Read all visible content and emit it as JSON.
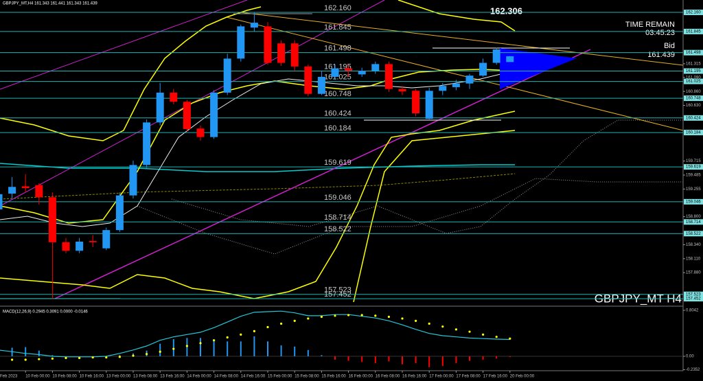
{
  "chart_data": [
    {
      "type": "candlestick",
      "title": "GBPJPY_MT,H4  161.343 161.441 161.343 161.439",
      "symbol_label": "GBPJPY_MT H4",
      "time_remain_label": "TIME REMAIN",
      "time_remain": "03:45:23",
      "bid_label": "Bid",
      "bid": 161.439,
      "high_label": 162.306,
      "categories": [
        "Feb 2023",
        null,
        "10 Feb 00:00",
        null,
        "10 Feb 08:00",
        null,
        "10 Feb 16:00",
        null,
        "13 Feb 00:00",
        null,
        "13 Feb 08:00",
        null,
        "13 Feb 16:00",
        null,
        "14 Feb 00:00",
        null,
        "14 Feb 08:00",
        null,
        "14 Feb 16:00",
        null,
        "15 Feb 00:00",
        null,
        "15 Feb 08:00",
        null,
        "15 Feb 16:00",
        null,
        "16 Feb 00:00",
        null,
        "16 Feb 08:00",
        null,
        "16 Feb 16:00",
        null,
        "17 Feb 00:00",
        null,
        "17 Feb 08:00",
        null,
        "17 Feb 16:00",
        null,
        "20 Feb 00:00"
      ],
      "open": [
        158.92,
        159.18,
        159.3,
        159.32,
        159.12,
        158.38,
        158.24,
        158.4,
        158.28,
        158.58,
        159.15,
        159.65,
        160.35,
        160.84,
        160.69,
        160.25,
        160.11,
        160.84,
        161.4,
        161.91,
        161.93,
        161.65,
        161.65,
        161.27,
        160.82,
        161.1,
        161.24,
        161.14,
        161.2,
        161.31,
        160.9,
        160.87,
        160.41,
        160.87,
        160.93,
        160.99,
        161.12,
        161.33,
        161.343
      ],
      "high": [
        159.3,
        159.45,
        159.5,
        159.35,
        159.2,
        158.45,
        158.45,
        158.5,
        158.62,
        159.2,
        159.72,
        160.4,
        161.0,
        160.9,
        160.72,
        160.3,
        160.88,
        161.48,
        161.96,
        162.16,
        162.0,
        161.7,
        161.7,
        161.3,
        161.2,
        161.3,
        161.3,
        161.25,
        161.35,
        161.35,
        160.95,
        160.9,
        160.92,
        161.0,
        161.05,
        161.15,
        161.4,
        161.58,
        161.441
      ],
      "low": [
        158.8,
        159.1,
        159.2,
        159.0,
        157.45,
        158.2,
        158.2,
        158.3,
        158.25,
        158.55,
        159.1,
        159.6,
        160.3,
        160.65,
        160.2,
        160.05,
        160.08,
        160.8,
        161.35,
        161.85,
        161.3,
        161.28,
        161.2,
        160.78,
        160.8,
        161.05,
        161.1,
        161.1,
        161.15,
        160.85,
        160.8,
        160.45,
        160.4,
        160.8,
        160.88,
        160.9,
        161.1,
        161.3,
        161.343
      ],
      "close": [
        159.17,
        159.29,
        159.27,
        159.12,
        158.38,
        158.24,
        158.39,
        158.38,
        158.58,
        159.15,
        159.65,
        160.35,
        160.84,
        160.69,
        160.24,
        160.11,
        160.84,
        161.4,
        161.93,
        161.99,
        161.33,
        161.33,
        161.27,
        160.82,
        161.1,
        161.24,
        161.2,
        161.2,
        161.31,
        160.9,
        160.86,
        160.5,
        160.87,
        160.95,
        160.99,
        161.12,
        161.33,
        161.55,
        161.439
      ],
      "up_color": "#2196f3",
      "down_color": "#ff0000",
      "ylim": [
        157.34,
        162.307
      ],
      "yticks": [
        161.315,
        {
          "value": 161.09,
          "label": "161.090"
        },
        {
          "value": 160.86,
          "label": "160.860"
        },
        {
          "value": 160.63,
          "label": "160.630"
        },
        159.715,
        159.485,
        159.255,
        {
          "value": 158.8,
          "label": "158.800"
        },
        {
          "value": 158.34,
          "label": "158.340"
        },
        {
          "value": 158.11,
          "label": "158.110"
        },
        {
          "value": 157.88,
          "label": "157.880"
        }
      ],
      "levels": [
        {
          "value": 162.16,
          "label": "162.160"
        },
        161.845,
        161.498,
        161.195,
        161.025,
        160.748,
        160.424,
        160.184,
        159.619,
        159.046,
        158.714,
        158.522,
        157.523,
        157.452
      ],
      "level_color": "#22b5b5"
    },
    {
      "type": "macd",
      "title": "MACD(12,26,9) 0.2945 0.3091 0.0000 -0.0146",
      "histogram": [
        0.12,
        0.15,
        0.16,
        0.1,
        0.02,
        -0.01,
        -0.01,
        -0.02,
        0.0,
        0.02,
        0.05,
        0.1,
        0.22,
        0.3,
        0.32,
        0.32,
        0.28,
        0.26,
        0.26,
        0.35,
        0.26,
        0.19,
        0.17,
        0.11,
        0.02,
        -0.06,
        -0.08,
        -0.1,
        -0.12,
        -0.09,
        -0.14,
        -0.12,
        -0.19,
        -0.17,
        -0.12,
        -0.08,
        -0.06,
        -0.04,
        -0.0146
      ],
      "main": [
        0.11,
        0.08,
        0.05,
        0.03,
        0.0,
        -0.01,
        -0.01,
        -0.01,
        0.0,
        0.05,
        0.11,
        0.18,
        0.28,
        0.34,
        0.38,
        0.42,
        0.5,
        0.6,
        0.7,
        0.77,
        0.78,
        0.79,
        0.76,
        0.71,
        0.71,
        0.73,
        0.73,
        0.7,
        0.67,
        0.62,
        0.55,
        0.47,
        0.4,
        0.36,
        0.34,
        0.32,
        0.31,
        0.3,
        0.2945
      ],
      "signal": [
        -0.05,
        -0.06,
        -0.06,
        -0.05,
        -0.04,
        -0.03,
        -0.03,
        -0.02,
        -0.02,
        -0.01,
        0.01,
        0.04,
        0.08,
        0.13,
        0.18,
        0.23,
        0.28,
        0.33,
        0.38,
        0.44,
        0.51,
        0.57,
        0.62,
        0.66,
        0.69,
        0.71,
        0.72,
        0.72,
        0.71,
        0.69,
        0.66,
        0.62,
        0.57,
        0.52,
        0.47,
        0.43,
        0.38,
        0.34,
        0.3091
      ],
      "pos_color": "#2196f3",
      "neg_color": "#ff0000",
      "main_color": "#22c8d8",
      "signal_color": "#ffff00",
      "ylim": [
        -0.2352,
        0.8042
      ],
      "yticks": [
        0.8042,
        {
          "value": 0,
          "label": "0.00"
        },
        -0.2352
      ]
    }
  ]
}
